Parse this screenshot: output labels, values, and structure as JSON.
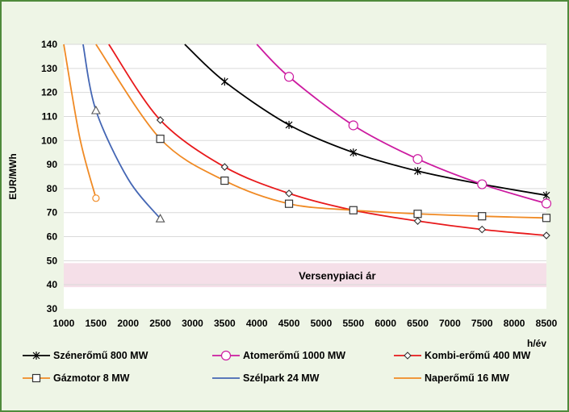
{
  "colors": {
    "frame_border": "#4f8a3c",
    "background": "#eef5e6",
    "plot_background": "#ffffff",
    "band": "#f5dfe8"
  },
  "chart_data": {
    "type": "line",
    "title": "",
    "xlabel": "h/év",
    "ylabel": "EUR/MWh",
    "xlim": [
      1000,
      8500
    ],
    "ylim": [
      30,
      140
    ],
    "xticks": [
      1000,
      1500,
      2000,
      2500,
      3000,
      3500,
      4000,
      4500,
      5000,
      5500,
      6000,
      6500,
      7000,
      7500,
      8000,
      8500
    ],
    "yticks": [
      30,
      40,
      50,
      60,
      70,
      80,
      90,
      100,
      110,
      120,
      130,
      140
    ],
    "grid": "horizontal",
    "legend_position": "bottom",
    "band": {
      "label": "Versenypiaci ár",
      "y_range": [
        39,
        49
      ]
    },
    "series": [
      {
        "name": "Szénerőmű 800 MW",
        "color": "#000000",
        "marker": "x",
        "x": [
          2880,
          3500,
          4500,
          5500,
          6500,
          7500,
          8500
        ],
        "y": [
          140,
          124.5,
          106.5,
          95,
          87.3,
          81.8,
          77.2
        ],
        "marker_x": [
          3500,
          4500,
          5500,
          6500,
          7500,
          8500
        ]
      },
      {
        "name": "Atomerőmű 1000 MW",
        "color": "#cc1ba0",
        "marker": "circle",
        "x": [
          4000,
          4500,
          5500,
          6500,
          7500,
          8500
        ],
        "y": [
          140,
          126.5,
          106.3,
          92.3,
          81.8,
          73.8
        ],
        "marker_x": [
          4500,
          5500,
          6500,
          7500,
          8500
        ]
      },
      {
        "name": "Kombi-erőmű 400 MW",
        "color": "#e8191b",
        "marker": "diamond",
        "x": [
          1700,
          2500,
          3500,
          4500,
          5500,
          6500,
          7500,
          8500
        ],
        "y": [
          140,
          108.5,
          89,
          78,
          71,
          66.5,
          63,
          60.5
        ],
        "marker_x": [
          2500,
          3500,
          4500,
          5500,
          6500,
          7500,
          8500
        ]
      },
      {
        "name": "Gázmotor 8 MW",
        "color": "#f08a24",
        "marker": "square",
        "x": [
          1500,
          2500,
          3500,
          4500,
          5500,
          6500,
          7500,
          8500
        ],
        "y": [
          140,
          100.7,
          83.3,
          73.7,
          71,
          69.5,
          68.5,
          67.8
        ],
        "marker_x": [
          2500,
          3500,
          4500,
          5500,
          6500,
          7500,
          8500
        ]
      },
      {
        "name": "Szélpark 24 MW",
        "color": "#4466b4",
        "marker": "triangle",
        "x": [
          1300,
          1500,
          2000,
          2500
        ],
        "y": [
          140,
          112.5,
          84,
          67.5
        ],
        "marker_x": [
          1500,
          2500
        ]
      },
      {
        "name": "Naperőmű 16 MW",
        "color": "#f08a24",
        "marker": "circle",
        "x": [
          1000,
          1250,
          1500
        ],
        "y": [
          140,
          101,
          76
        ],
        "marker_x": [
          1500
        ]
      }
    ]
  }
}
